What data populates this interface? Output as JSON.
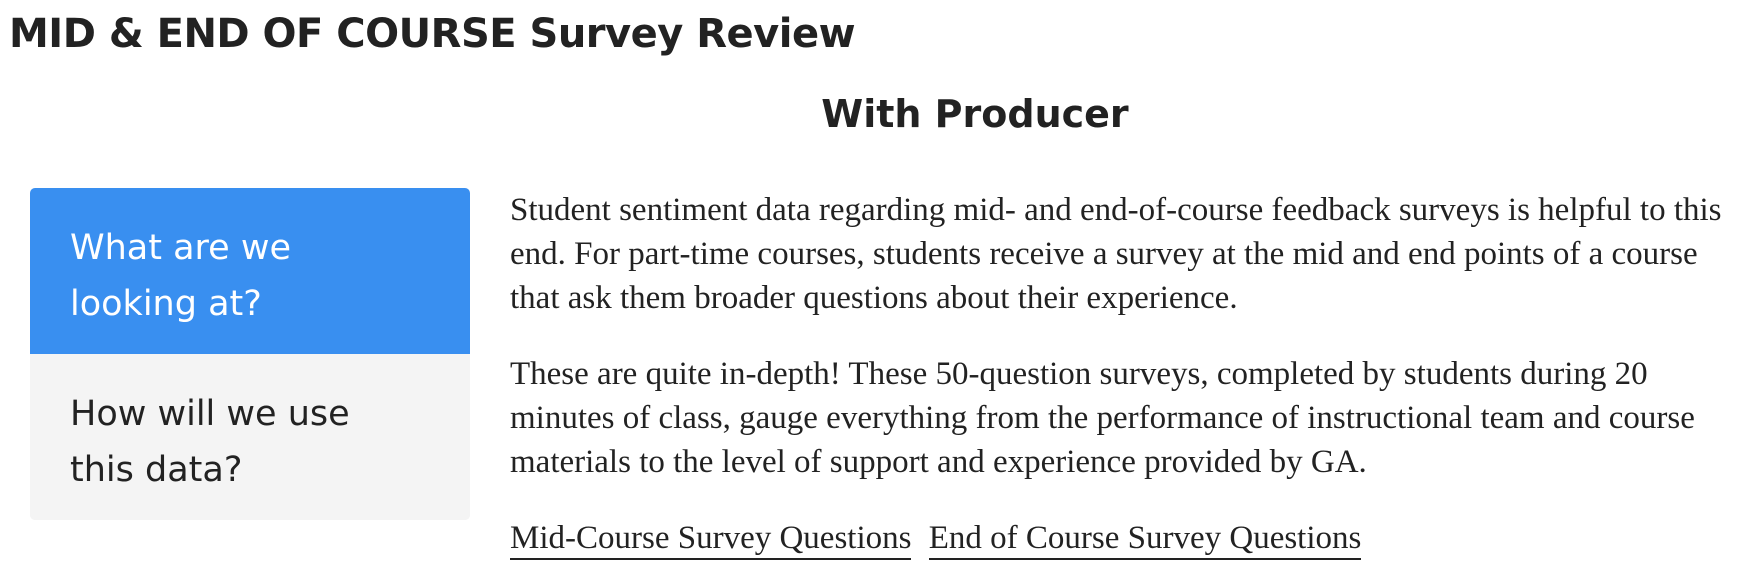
{
  "page": {
    "title": "MID & END OF COURSE Survey Review",
    "section_title": "With Producer"
  },
  "tabs": [
    {
      "label": "What are we\nlooking at?",
      "active": true
    },
    {
      "label": "How will we use\nthis data?",
      "active": false
    }
  ],
  "content": {
    "paragraphs": [
      "Student sentiment data regarding mid- and end-of-course feedback surveys is helpful to this end. For part-time courses, students receive a survey at the mid and end points of a course that ask them broader questions about their experience.",
      "These are quite in-depth! These 50-question surveys, completed by students during 20 minutes of class, gauge everything from the performance of instructional team and course materials to the level of support and experience provided by GA."
    ],
    "links": [
      {
        "label": "Mid-Course Survey Questions"
      },
      {
        "label": "End of Course Survey Questions"
      }
    ]
  },
  "colors": {
    "active_tab_bg": "#398ff0",
    "inactive_tab_bg": "#f4f4f4",
    "text": "#222222"
  }
}
